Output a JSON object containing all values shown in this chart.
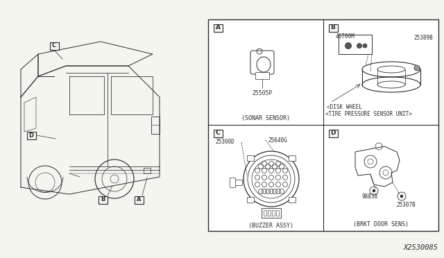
{
  "bg_color": "#f5f5f0",
  "border_color": "#333333",
  "text_color": "#000000",
  "diagram_id": "X2530085",
  "panel_A_part": "25505P",
  "panel_A_desc": "(SONAR SENSOR)",
  "panel_B_part1": "40700M",
  "panel_B_part2": "25389B",
  "panel_B_desc1": "<DISK WHEEL",
  "panel_B_desc2": "<TIRE PRESSURE SENSOR UNIT>",
  "panel_C_part1": "25300D",
  "panel_C_part2": "25640G",
  "panel_C_desc": "(BUZZER ASSY)",
  "panel_D_part1": "98838",
  "panel_D_part2": "25307B",
  "panel_D_desc": "(BRKT DOOR SENS)"
}
